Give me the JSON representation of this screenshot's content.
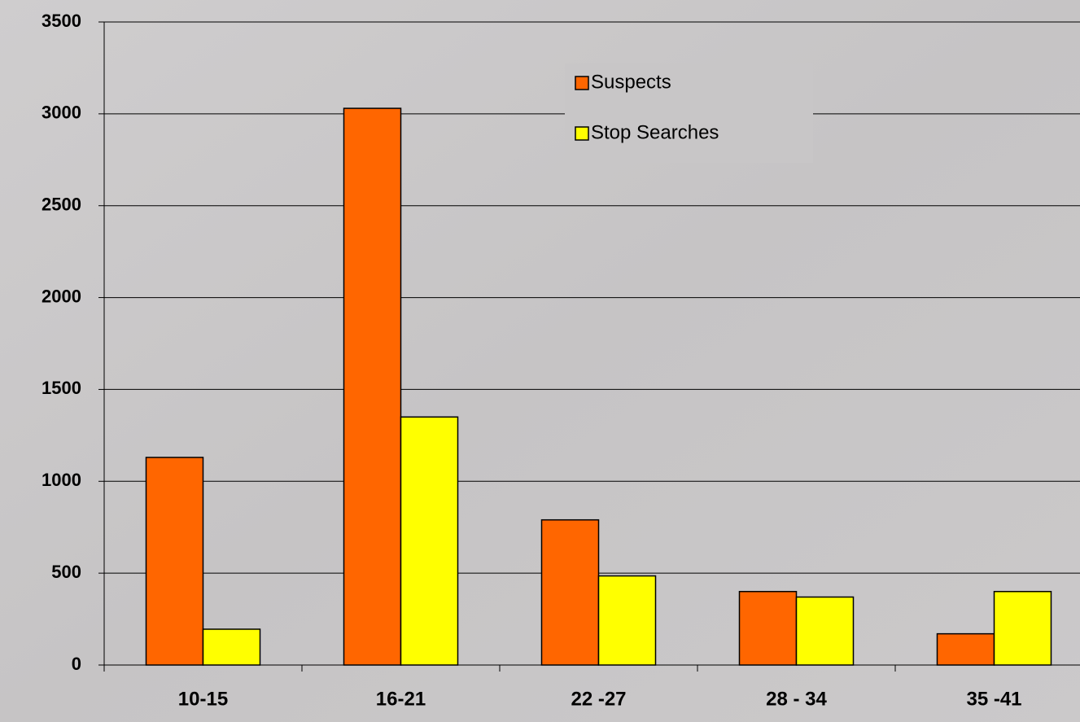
{
  "chart_data": {
    "type": "bar",
    "categories": [
      "10-15",
      "16-21",
      "22 -27",
      "28 - 34",
      "35 -41"
    ],
    "series": [
      {
        "name": "Suspects",
        "color": "#ff6600",
        "values": [
          1130,
          3030,
          790,
          400,
          170
        ]
      },
      {
        "name": "Stop Searches",
        "color": "#ffff00",
        "values": [
          195,
          1350,
          485,
          370,
          400
        ]
      }
    ],
    "ylim": [
      0,
      3500
    ],
    "yticks": [
      0,
      500,
      1000,
      1500,
      2000,
      2500,
      3000,
      3500
    ],
    "grid": true
  }
}
